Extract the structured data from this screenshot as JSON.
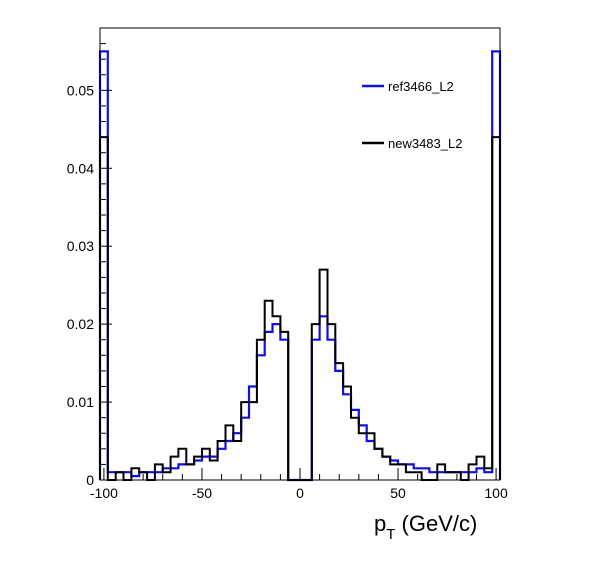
{
  "chart_data": {
    "type": "line",
    "step": true,
    "title": "",
    "xlabel": "p_T (GeV/c)",
    "xlabel_main": "p",
    "xlabel_sub": "T",
    "xlabel_rest": " (GeV/c)",
    "ylabel": "",
    "xlim": [
      -102,
      102
    ],
    "ylim": [
      0,
      0.058
    ],
    "xticks": [
      -100,
      -50,
      0,
      50,
      100
    ],
    "xtick_labels": [
      "-100",
      "-50",
      "0",
      "50",
      "100"
    ],
    "yticks": [
      0,
      0.01,
      0.02,
      0.03,
      0.04,
      0.05
    ],
    "ytick_labels": [
      "0",
      "0.01",
      "0.02",
      "0.03",
      "0.04",
      "0.05"
    ],
    "grid": false,
    "legend_position": "top-right",
    "x": [
      -100,
      -96,
      -92,
      -88,
      -84,
      -80,
      -76,
      -72,
      -68,
      -64,
      -60,
      -56,
      -52,
      -48,
      -44,
      -40,
      -36,
      -32,
      -28,
      -24,
      -20,
      -16,
      -12,
      -8,
      -4,
      0,
      4,
      8,
      12,
      16,
      20,
      24,
      28,
      32,
      36,
      40,
      44,
      48,
      52,
      56,
      60,
      64,
      68,
      72,
      76,
      80,
      84,
      88,
      92,
      96,
      100
    ],
    "series": [
      {
        "name": "ref3466_L2",
        "color": "#1010e0",
        "values": [
          0.055,
          0.001,
          0.001,
          0.001,
          0.0005,
          0.001,
          0.001,
          0.001,
          0.0015,
          0.0015,
          0.002,
          0.002,
          0.0025,
          0.003,
          0.003,
          0.004,
          0.005,
          0.006,
          0.008,
          0.012,
          0.016,
          0.019,
          0.02,
          0.018,
          0.0,
          0.0,
          0.0,
          0.018,
          0.021,
          0.018,
          0.014,
          0.011,
          0.009,
          0.007,
          0.005,
          0.004,
          0.003,
          0.0025,
          0.002,
          0.002,
          0.0015,
          0.0015,
          0.001,
          0.001,
          0.001,
          0.001,
          0.001,
          0.001,
          0.0015,
          0.001,
          0.055
        ]
      },
      {
        "name": "new3483_L2",
        "color": "#000000",
        "values": [
          0.044,
          0.0,
          0.001,
          0.0,
          0.0015,
          0.001,
          0.0,
          0.002,
          0.001,
          0.003,
          0.004,
          0.002,
          0.003,
          0.004,
          0.0025,
          0.005,
          0.007,
          0.005,
          0.01,
          0.01,
          0.018,
          0.023,
          0.021,
          0.019,
          0.0,
          0.0,
          0.0,
          0.02,
          0.027,
          0.02,
          0.015,
          0.012,
          0.008,
          0.006,
          0.006,
          0.004,
          0.003,
          0.002,
          0.002,
          0.001,
          0.001,
          0.0,
          0.0,
          0.002,
          0.001,
          0.001,
          0.0,
          0.002,
          0.003,
          0.0015,
          0.044
        ]
      }
    ]
  }
}
